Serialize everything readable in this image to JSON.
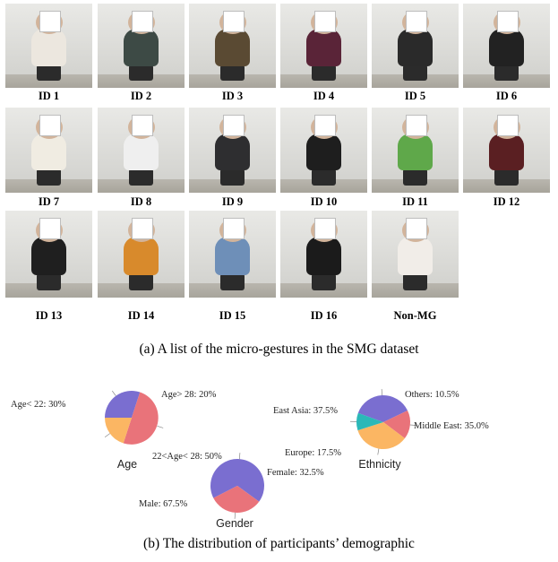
{
  "figure_a": {
    "caption": "(a) A list of the micro-gestures in the SMG dataset",
    "participants": [
      {
        "id": "ID 1",
        "shirt": "#ece7df"
      },
      {
        "id": "ID 2",
        "shirt": "#3d4a45"
      },
      {
        "id": "ID 3",
        "shirt": "#5a4a33"
      },
      {
        "id": "ID 4",
        "shirt": "#5a2438"
      },
      {
        "id": "ID 5",
        "shirt": "#2a2a2a"
      },
      {
        "id": "ID 6",
        "shirt": "#222222"
      },
      {
        "id": "ID 7",
        "shirt": "#f0ece2"
      },
      {
        "id": "ID 8",
        "shirt": "#efefef"
      },
      {
        "id": "ID 9",
        "shirt": "#2e2e30"
      },
      {
        "id": "ID 10",
        "shirt": "#1e1e1e"
      },
      {
        "id": "ID 11",
        "shirt": "#5fa84a"
      },
      {
        "id": "ID 12",
        "shirt": "#5a1f22"
      },
      {
        "id": "ID 13",
        "shirt": "#1f1f1f"
      },
      {
        "id": "ID 14",
        "shirt": "#d88a2c"
      },
      {
        "id": "ID 15",
        "shirt": "#6e8fb8"
      },
      {
        "id": "ID 16",
        "shirt": "#1b1b1b"
      },
      {
        "id": "Non-MG",
        "shirt": "#f1ede8"
      }
    ]
  },
  "figure_b": {
    "caption": "(b) The distribution of participants’ demographic"
  },
  "colors": {
    "purple": "#7a6ed0",
    "red": "#e9737a",
    "orange": "#fbb663",
    "teal": "#2bb8b8"
  },
  "chart_data": [
    {
      "type": "pie",
      "title": "Age",
      "slices": [
        {
          "label": "Age< 22: 30%",
          "value": 30,
          "color": "#7a6ed0"
        },
        {
          "label": "22<Age< 28: 50%",
          "value": 50,
          "color": "#e9737a"
        },
        {
          "label": "Age> 28: 20%",
          "value": 20,
          "color": "#fbb663"
        }
      ]
    },
    {
      "type": "pie",
      "title": "Ethnicity",
      "slices": [
        {
          "label": "East Asia: 37.5%",
          "value": 37.5,
          "color": "#7a6ed0"
        },
        {
          "label": "Europe: 17.5%",
          "value": 17.5,
          "color": "#e9737a"
        },
        {
          "label": "Middle East: 35.0%",
          "value": 35.0,
          "color": "#fbb663"
        },
        {
          "label": "Others: 10.5%",
          "value": 10.5,
          "color": "#2bb8b8"
        }
      ]
    },
    {
      "type": "pie",
      "title": "Gender",
      "slices": [
        {
          "label": "Male: 67.5%",
          "value": 67.5,
          "color": "#7a6ed0"
        },
        {
          "label": "Female: 32.5%",
          "value": 32.5,
          "color": "#e9737a"
        }
      ]
    }
  ]
}
